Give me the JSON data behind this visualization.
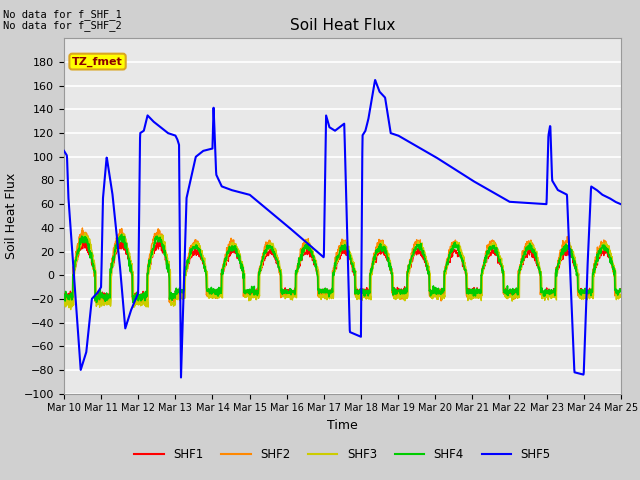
{
  "title": "Soil Heat Flux",
  "xlabel": "Time",
  "ylabel": "Soil Heat Flux",
  "ylim": [
    -100,
    200
  ],
  "yticks": [
    -100,
    -80,
    -60,
    -40,
    -20,
    0,
    20,
    40,
    60,
    80,
    100,
    120,
    140,
    160,
    180
  ],
  "xtick_labels": [
    "Mar 10",
    "Mar 11",
    "Mar 12",
    "Mar 13",
    "Mar 14",
    "Mar 15",
    "Mar 16",
    "Mar 17",
    "Mar 18",
    "Mar 19",
    "Mar 20",
    "Mar 21",
    "Mar 22",
    "Mar 23",
    "Mar 24",
    "Mar 25"
  ],
  "no_data_text1": "No data for f_SHF_1",
  "no_data_text2": "No data for f_SHF_2",
  "tz_label": "TZ_fmet",
  "legend_labels": [
    "SHF1",
    "SHF2",
    "SHF3",
    "SHF4",
    "SHF5"
  ],
  "legend_colors": [
    "#ff0000",
    "#ff8800",
    "#cccc00",
    "#00cc00",
    "#0000ff"
  ],
  "fig_bg_color": "#d0d0d0",
  "plot_bg_color": "#e8e8e8",
  "grid_color": "#ffffff"
}
